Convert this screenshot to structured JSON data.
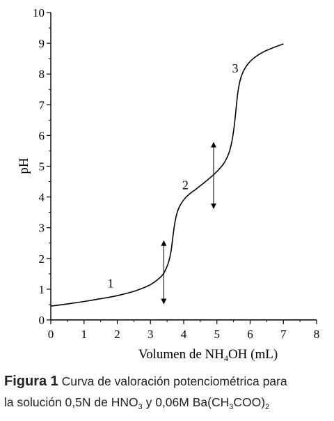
{
  "chart_data": {
    "type": "line",
    "xlabel_parts": [
      "Volumen de NH",
      "4",
      "OH (mL)"
    ],
    "ylabel": "pH",
    "xlim": [
      0,
      8
    ],
    "ylim": [
      0,
      10
    ],
    "x_ticks": [
      0,
      1,
      2,
      3,
      4,
      5,
      6,
      7,
      8
    ],
    "y_ticks": [
      0,
      1,
      2,
      3,
      4,
      5,
      6,
      7,
      8,
      9,
      10
    ],
    "grid": false,
    "series": [
      {
        "points": [
          [
            0.0,
            0.45
          ],
          [
            0.5,
            0.52
          ],
          [
            1.0,
            0.6
          ],
          [
            1.5,
            0.69
          ],
          [
            2.0,
            0.79
          ],
          [
            2.5,
            0.93
          ],
          [
            2.8,
            1.05
          ],
          [
            3.0,
            1.15
          ],
          [
            3.2,
            1.3
          ],
          [
            3.35,
            1.45
          ],
          [
            3.45,
            1.62
          ],
          [
            3.55,
            1.9
          ],
          [
            3.62,
            2.25
          ],
          [
            3.68,
            2.75
          ],
          [
            3.74,
            3.2
          ],
          [
            3.82,
            3.55
          ],
          [
            3.92,
            3.78
          ],
          [
            4.05,
            3.97
          ],
          [
            4.2,
            4.12
          ],
          [
            4.4,
            4.28
          ],
          [
            4.6,
            4.45
          ],
          [
            4.8,
            4.63
          ],
          [
            5.0,
            4.83
          ],
          [
            5.2,
            5.08
          ],
          [
            5.35,
            5.4
          ],
          [
            5.45,
            5.8
          ],
          [
            5.52,
            6.3
          ],
          [
            5.58,
            6.9
          ],
          [
            5.63,
            7.4
          ],
          [
            5.7,
            7.8
          ],
          [
            5.8,
            8.1
          ],
          [
            5.95,
            8.35
          ],
          [
            6.15,
            8.55
          ],
          [
            6.4,
            8.72
          ],
          [
            6.7,
            8.86
          ],
          [
            7.0,
            8.98
          ]
        ]
      }
    ],
    "annotations": [
      {
        "text": "1",
        "x": 1.8,
        "y": 1.05
      },
      {
        "text": "2",
        "x": 4.05,
        "y": 4.25
      },
      {
        "text": "3",
        "x": 5.55,
        "y": 8.05
      }
    ],
    "double_arrows": [
      {
        "x": 3.4,
        "y_from": 0.6,
        "y_to": 2.5
      },
      {
        "x": 4.9,
        "y_from": 3.7,
        "y_to": 5.7
      }
    ]
  },
  "caption": {
    "label": "Figura 1",
    "text_1": "Curva de valoración potenciométrica para",
    "text_2a": "la solución 0,5N de HNO",
    "sub_1": "3",
    "text_2b": " y 0,06M Ba(CH",
    "sub_2": "3",
    "text_2c": "COO)",
    "sub_3": "2"
  },
  "style": {
    "line_color": "#000000",
    "caption_color": "#222222"
  }
}
